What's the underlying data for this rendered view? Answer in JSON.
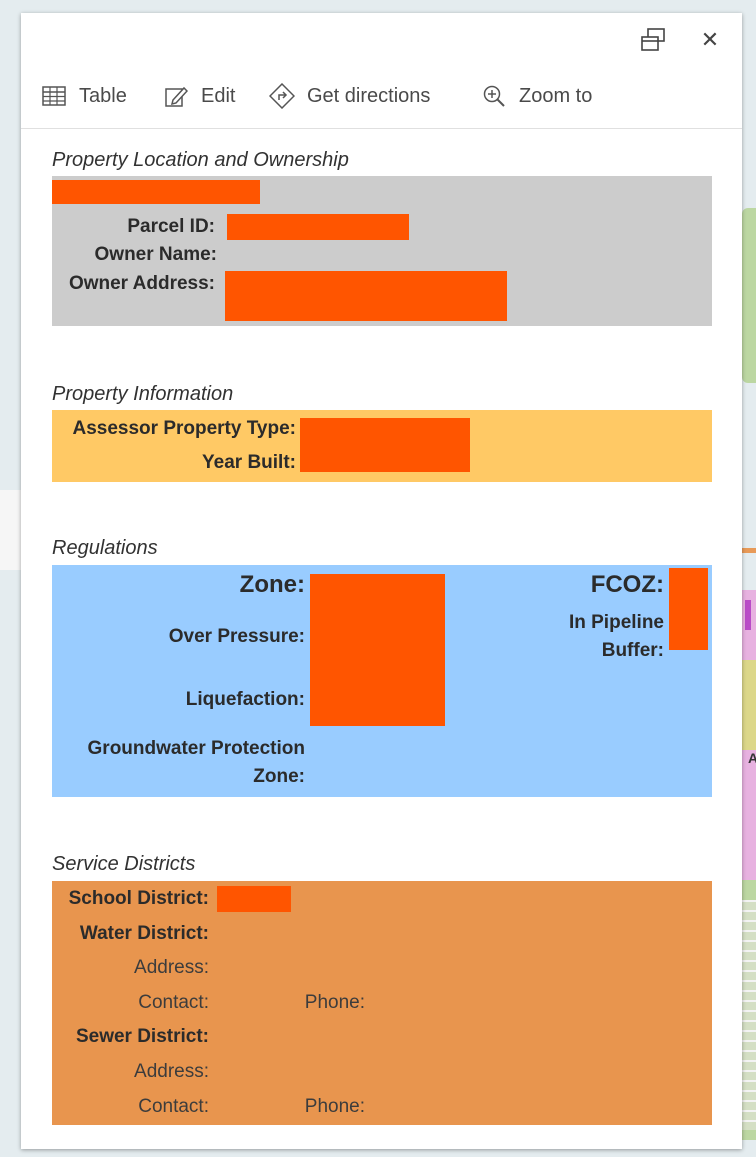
{
  "toolbar": {
    "dock_icon": "dock-icon",
    "close_icon": "close-icon",
    "close_glyph": "✕",
    "actions": [
      {
        "label": "Table",
        "icon": "table-icon"
      },
      {
        "label": "Edit",
        "icon": "edit-icon"
      },
      {
        "label": "Get directions",
        "icon": "directions-icon"
      },
      {
        "label": "Zoom to",
        "icon": "zoom-to-icon"
      }
    ]
  },
  "map": {
    "label_fragment": "AG"
  },
  "ownership": {
    "title": "Property Location and Ownership",
    "parcel_id_label": "Parcel ID:",
    "owner_name_label": "Owner Name:",
    "owner_address_label": "Owner Address:",
    "color": "#cccccc"
  },
  "property_info": {
    "title": "Property Information",
    "property_type_label": "Assessor Property Type:",
    "year_built_label": "Year Built:",
    "color": "#ffc965"
  },
  "regulations": {
    "title": "Regulations",
    "zone_label": "Zone:",
    "over_pressure_label": "Over Pressure:",
    "liquefaction_label": "Liquefaction:",
    "groundwater_label_1": "Groundwater Protection",
    "groundwater_label_2": "Zone:",
    "fcoz_label": "FCOZ:",
    "pipeline_label_1": "In Pipeline",
    "pipeline_label_2": "Buffer:",
    "color": "#99ccff"
  },
  "service_districts": {
    "title": "Service Districts",
    "school_label": "School District:",
    "water_label": "Water District:",
    "water_address_label": "Address:",
    "water_contact_label": "Contact:",
    "water_phone_label": "Phone:",
    "sewer_label": "Sewer District:",
    "sewer_address_label": "Address:",
    "sewer_contact_label": "Contact:",
    "sewer_phone_label": "Phone:",
    "color": "#e8954e"
  },
  "redaction_color": "#ff5500"
}
